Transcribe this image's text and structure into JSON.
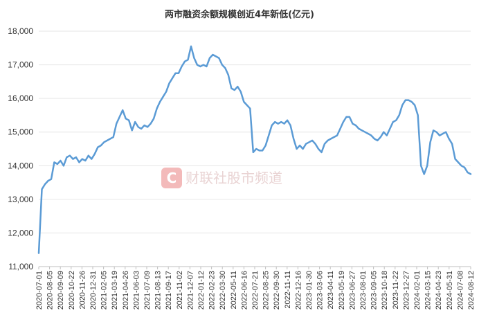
{
  "chart_data": {
    "type": "line",
    "title": "两市融资余额规模创近4年新低(亿元)",
    "xlabel": "",
    "ylabel": "",
    "ylim": [
      11000,
      18000
    ],
    "yticks": [
      "11,000",
      "12,000",
      "13,000",
      "14,000",
      "15,000",
      "16,000",
      "17,000",
      "18,000"
    ],
    "xtick_labels": [
      "2020-07-01",
      "2020-08-05",
      "2020-09-09",
      "2020-10-22",
      "2020-11-26",
      "2020-12-31",
      "2021-02-05",
      "2021-03-19",
      "2021-04-26",
      "2021-06-03",
      "2021-07-09",
      "2021-08-13",
      "2021-09-17",
      "2021-11-02",
      "2021-12-07",
      "2022-01-12",
      "2022-02-23",
      "2022-03-30",
      "2022-05-11",
      "2022-06-16",
      "2022-07-21",
      "2022-08-25",
      "2022-09-30",
      "2022-11-11",
      "2022-12-16",
      "2023-01-30",
      "2023-03-06",
      "2023-04-11",
      "2023-05-19",
      "2023-06-27",
      "2023-08-01",
      "2023-09-05",
      "2023-10-18",
      "2023-11-22",
      "2023-12-27",
      "2024-02-01",
      "2024-03-15",
      "2024-04-23",
      "2024-05-31",
      "2024-07-08",
      "2024-08-12"
    ],
    "grid": true,
    "series_color": "#5b9bd5",
    "series": [
      {
        "values": [
          11400,
          13300,
          13450,
          13550,
          13600,
          14100,
          14050,
          14150,
          14000,
          14250,
          14300,
          14200,
          14250,
          14100,
          14200,
          14150,
          14300,
          14200,
          14350,
          14550,
          14600,
          14700,
          14750,
          14800,
          14850,
          15250,
          15450,
          15650,
          15400,
          15350,
          15050,
          15300,
          15150,
          15100,
          15200,
          15150,
          15250,
          15400,
          15700,
          15900,
          16050,
          16200,
          16450,
          16600,
          16750,
          16750,
          16950,
          17100,
          17150,
          17550,
          17200,
          17000,
          16950,
          17000,
          16950,
          17200,
          17300,
          17250,
          17200,
          17000,
          16900,
          16700,
          16300,
          16250,
          16350,
          16200,
          15900,
          15800,
          15700,
          14400,
          14500,
          14450,
          14450,
          14600,
          14900,
          15200,
          15300,
          15250,
          15300,
          15250,
          15350,
          15200,
          14800,
          14500,
          14600,
          14500,
          14650,
          14700,
          14750,
          14650,
          14500,
          14400,
          14650,
          14750,
          14800,
          14850,
          14900,
          15100,
          15300,
          15450,
          15450,
          15250,
          15200,
          15100,
          15050,
          15000,
          14950,
          14900,
          14800,
          14750,
          14850,
          15000,
          14900,
          15100,
          15300,
          15350,
          15500,
          15800,
          15950,
          15950,
          15900,
          15800,
          15500,
          14000,
          13750,
          14000,
          14700,
          15050,
          15000,
          14900,
          14950,
          15000,
          14800,
          14650,
          14200,
          14100,
          14000,
          13950,
          13800,
          13750
        ]
      }
    ]
  },
  "watermark": {
    "logo_letter": "C",
    "text": "财联社股市频道",
    "color": "#e94848"
  }
}
